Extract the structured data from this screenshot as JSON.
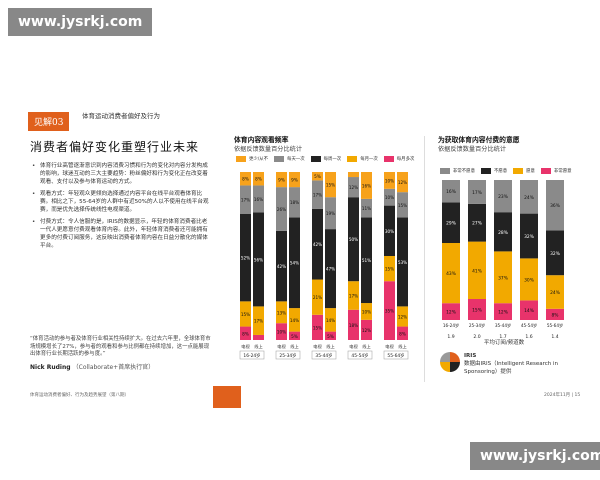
{
  "watermark": "www.jysrkj.com",
  "left": {
    "badge": "见解03",
    "badge_title": "体育运动消费者偏好及行为",
    "headline": "消费者偏好变化重塑行业未来",
    "bullets": [
      "体育行业高管逐渐意识到内容消费习惯和行为的变化对内容分发构成的影响，球迷互动的三大主要趋势：粉丝偏好和行为变化正在改变着观看、支付以及参与体育运动的方式。",
      "观看方式：年轻观众更倾向选择通过内容平台在线平台观看体育比赛。相比之下，55-64岁的人群中有近50%的人以不使用在线平台观赛，而是优先选择传统线性电视渠道。",
      "付费方式：令人信服的是，IRIS的数据显示，年轻的体育消费者比老一代人更愿意付费观看体育内容。此外，年轻体育消费者还可能拥有更多的付费订阅服务，这反映出消费者体育内容在日益分散化的媒体平台。"
    ],
    "quote": "“体育活动的参与者及体育行业相关性持续扩大。在过去六年里，全球体育市场规模增长了27%，参与者的观看和参与比例都在持续增加，这一点能展现出体育行业长期活跃的参与度。”",
    "quote_author": "Nick Ruding",
    "quote_role": "（Collaborate+首席执行官）",
    "footer_left": "体育运动消费者偏好、行为及趋势展望（第八期）",
    "footer_right": "2024年11月 | 15"
  },
  "chart1": {
    "title": "体育内容观看频率",
    "subtitle": "依据反馈数量百分比统计"
  },
  "chart2": {
    "title": "为获取体育内容付费的意愿",
    "subtitle": "依据反馈数量百分比统计"
  },
  "iris": {
    "name": "IRIS",
    "text": "数据由IRIS（Intelligent Research in Sponsoring）提供"
  },
  "chart_data": [
    {
      "type": "bar",
      "title": "体育内容观看频率",
      "subtitle": "依据反馈数量百分比统计",
      "stacked": true,
      "legend_position": "top",
      "categories": [
        "16-24岁",
        "25-34岁",
        "35-44岁",
        "45-54岁",
        "55-64岁"
      ],
      "sub_categories": [
        "电视",
        "线上"
      ],
      "series": [
        {
          "name": "每月多次",
          "color": "#e8336b",
          "values": [
            [
              8,
              3
            ],
            [
              10,
              5
            ],
            [
              15,
              5
            ],
            [
              18,
              12
            ],
            [
              35,
              8
            ]
          ]
        },
        {
          "name": "每月一次",
          "color": "#f2a900",
          "values": [
            [
              15,
              17
            ],
            [
              13,
              14
            ],
            [
              21,
              14
            ],
            [
              17,
              10
            ],
            [
              15,
              12
            ]
          ]
        },
        {
          "name": "每周一次",
          "color": "#222222",
          "values": [
            [
              52,
              56
            ],
            [
              42,
              54
            ],
            [
              42,
              47
            ],
            [
              50,
              51
            ],
            [
              30,
              53
            ]
          ]
        },
        {
          "name": "每天一次",
          "color": "#8a8a8a",
          "values": [
            [
              17,
              16
            ],
            [
              26,
              18
            ],
            [
              17,
              19
            ],
            [
              12,
              11
            ],
            [
              10,
              15
            ]
          ]
        },
        {
          "name": "更少/从不",
          "color": "#f7a21b",
          "values": [
            [
              8,
              8
            ],
            [
              9,
              9
            ],
            [
              5,
              15
            ],
            [
              3,
              16
            ],
            [
              10,
              12
            ]
          ]
        }
      ]
    },
    {
      "type": "bar",
      "title": "为获取体育内容付费的意愿",
      "subtitle": "依据反馈数量百分比统计",
      "stacked": true,
      "legend_position": "top",
      "categories": [
        "16-24岁",
        "25-34岁",
        "35-44岁",
        "45-54岁",
        "55-64岁"
      ],
      "cat_values": [
        "1.9",
        "2.0",
        "1.7",
        "1.6",
        "1.4"
      ],
      "xlabel": "平均订阅/频道数",
      "series": [
        {
          "name": "非常愿意",
          "color": "#e8336b",
          "values": [
            12,
            15,
            12,
            14,
            8
          ]
        },
        {
          "name": "愿意",
          "color": "#f2a900",
          "values": [
            43,
            41,
            37,
            30,
            24
          ]
        },
        {
          "name": "不愿意",
          "color": "#222222",
          "values": [
            29,
            27,
            28,
            32,
            32
          ]
        },
        {
          "name": "非常不愿意",
          "color": "#8a8a8a",
          "values": [
            16,
            17,
            23,
            24,
            36
          ]
        }
      ]
    }
  ]
}
